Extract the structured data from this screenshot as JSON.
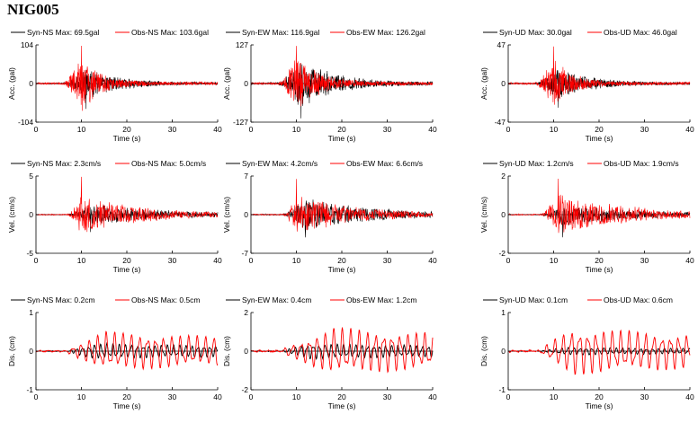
{
  "station": "NIG005",
  "colors": {
    "syn": "#000000",
    "obs": "#ff0000"
  },
  "chart_data": [
    {
      "type": "line",
      "row": 0,
      "col": 0,
      "xlabel": "Time (s)",
      "ylabel": "Acc. (gal)",
      "xlim": [
        0,
        40
      ],
      "xticks": [
        0,
        10,
        20,
        30,
        40
      ],
      "ylim": [
        -104,
        104
      ],
      "yticks": [
        -104,
        0,
        104
      ],
      "series": [
        {
          "name": "Syn-NS  Max: 69.5gal",
          "max": 69.5,
          "color": "#000000",
          "shape": "acc",
          "start": 6,
          "peak": 11,
          "decay": 7,
          "seed": 11,
          "amp": 0.45
        },
        {
          "name": "Obs-NS  Max: 103.6gal",
          "max": 103.6,
          "color": "#ff0000",
          "shape": "acc",
          "start": 6,
          "peak": 10,
          "decay": 4,
          "seed": 21,
          "amp": 0.75
        }
      ]
    },
    {
      "type": "line",
      "row": 0,
      "col": 1,
      "xlabel": "Time (s)",
      "ylabel": "Acc. (gal)",
      "xlim": [
        0,
        40
      ],
      "xticks": [
        0,
        10,
        20,
        30,
        40
      ],
      "ylim": [
        -127,
        127
      ],
      "yticks": [
        -127,
        0,
        127
      ],
      "series": [
        {
          "name": "Syn-EW  Max: 116.9gal",
          "max": 116.9,
          "color": "#000000",
          "shape": "acc",
          "start": 6,
          "peak": 11,
          "decay": 7,
          "seed": 31,
          "amp": 0.7
        },
        {
          "name": "Obs-EW  Max: 126.2gal",
          "max": 126.2,
          "color": "#ff0000",
          "shape": "acc",
          "start": 6,
          "peak": 10,
          "decay": 5,
          "seed": 41,
          "amp": 0.75
        }
      ]
    },
    {
      "type": "line",
      "row": 0,
      "col": 2,
      "xlabel": "Time (s)",
      "ylabel": "Acc. (gal)",
      "xlim": [
        0,
        40
      ],
      "xticks": [
        0,
        10,
        20,
        30,
        40
      ],
      "ylim": [
        -47,
        47
      ],
      "yticks": [
        -47,
        0,
        47
      ],
      "series": [
        {
          "name": "Syn-UD  Max: 30.0gal",
          "max": 30.0,
          "color": "#000000",
          "shape": "acc",
          "start": 6,
          "peak": 11,
          "decay": 7,
          "seed": 51,
          "amp": 0.45
        },
        {
          "name": "Obs-UD  Max: 46.0gal",
          "max": 46.0,
          "color": "#ff0000",
          "shape": "acc",
          "start": 6,
          "peak": 10,
          "decay": 4,
          "seed": 61,
          "amp": 0.7
        }
      ]
    },
    {
      "type": "line",
      "row": 1,
      "col": 0,
      "xlabel": "Time (s)",
      "ylabel": "Vel. (cm/s)",
      "xlim": [
        0,
        40
      ],
      "xticks": [
        0,
        10,
        20,
        30,
        40
      ],
      "ylim": [
        -5,
        5
      ],
      "yticks": [
        -5,
        0,
        5
      ],
      "series": [
        {
          "name": "Syn-NS  Max: 2.3cm/s",
          "max": 2.3,
          "color": "#000000",
          "shape": "vel",
          "start": 7,
          "peak": 12,
          "decay": 16,
          "seed": 12,
          "amp": 0.3
        },
        {
          "name": "Obs-NS  Max: 5.0cm/s",
          "max": 5.0,
          "color": "#ff0000",
          "shape": "vel",
          "start": 7,
          "peak": 10,
          "decay": 12,
          "seed": 22,
          "amp": 0.55
        }
      ]
    },
    {
      "type": "line",
      "row": 1,
      "col": 1,
      "xlabel": "Time (s)",
      "ylabel": "Vel. (cm/s)",
      "xlim": [
        0,
        40
      ],
      "xticks": [
        0,
        10,
        20,
        30,
        40
      ],
      "ylim": [
        -7,
        7
      ],
      "yticks": [
        -7,
        0,
        7
      ],
      "series": [
        {
          "name": "Syn-EW  Max: 4.2cm/s",
          "max": 4.2,
          "color": "#000000",
          "shape": "vel",
          "start": 7,
          "peak": 12,
          "decay": 14,
          "seed": 32,
          "amp": 0.45
        },
        {
          "name": "Obs-EW  Max: 6.6cm/s",
          "max": 6.6,
          "color": "#ff0000",
          "shape": "vel",
          "start": 7,
          "peak": 10,
          "decay": 12,
          "seed": 42,
          "amp": 0.55
        }
      ]
    },
    {
      "type": "line",
      "row": 1,
      "col": 2,
      "xlabel": "Time (s)",
      "ylabel": "Vel. (cm/s)",
      "xlim": [
        0,
        40
      ],
      "xticks": [
        0,
        10,
        20,
        30,
        40
      ],
      "ylim": [
        -2,
        2
      ],
      "yticks": [
        -2,
        0,
        2
      ],
      "series": [
        {
          "name": "Syn-UD  Max: 1.2cm/s",
          "max": 1.2,
          "color": "#000000",
          "shape": "vel",
          "start": 7,
          "peak": 12,
          "decay": 16,
          "seed": 52,
          "amp": 0.3
        },
        {
          "name": "Obs-UD  Max: 1.9cm/s",
          "max": 1.9,
          "color": "#ff0000",
          "shape": "vel",
          "start": 7,
          "peak": 11,
          "decay": 14,
          "seed": 62,
          "amp": 0.6
        }
      ]
    },
    {
      "type": "line",
      "row": 2,
      "col": 0,
      "xlabel": "Time (s)",
      "ylabel": "Dis. (cm)",
      "xlim": [
        0,
        40
      ],
      "xticks": [
        0,
        10,
        20,
        30,
        40
      ],
      "ylim": [
        -1,
        1
      ],
      "yticks": [
        -1,
        0,
        1
      ],
      "series": [
        {
          "name": "Syn-NS  Max: 0.2cm",
          "max": 0.2,
          "color": "#000000",
          "shape": "dis",
          "start": 7,
          "peak": 13,
          "decay": 30,
          "seed": 13,
          "amp": 0.55
        },
        {
          "name": "Obs-NS  Max: 0.5cm",
          "max": 0.5,
          "color": "#ff0000",
          "shape": "dis",
          "start": 7,
          "peak": 15,
          "decay": 30,
          "seed": 23,
          "amp": 0.8
        }
      ]
    },
    {
      "type": "line",
      "row": 2,
      "col": 1,
      "xlabel": "Time (s)",
      "ylabel": "Dis. (cm)",
      "xlim": [
        0,
        40
      ],
      "xticks": [
        0,
        10,
        20,
        30,
        40
      ],
      "ylim": [
        -2,
        2
      ],
      "yticks": [
        -2,
        0,
        2
      ],
      "series": [
        {
          "name": "Syn-EW  Max: 0.4cm",
          "max": 0.4,
          "color": "#000000",
          "shape": "dis",
          "start": 7,
          "peak": 13,
          "decay": 30,
          "seed": 33,
          "amp": 0.55
        },
        {
          "name": "Obs-EW  Max: 1.2cm",
          "max": 1.2,
          "color": "#ff0000",
          "shape": "dis",
          "start": 7,
          "peak": 18,
          "decay": 30,
          "seed": 43,
          "amp": 0.8
        }
      ]
    },
    {
      "type": "line",
      "row": 2,
      "col": 2,
      "xlabel": "Time (s)",
      "ylabel": "Dis. (cm)",
      "xlim": [
        0,
        40
      ],
      "xticks": [
        0,
        10,
        20,
        30,
        40
      ],
      "ylim": [
        -1,
        1
      ],
      "yticks": [
        -1,
        0,
        1
      ],
      "series": [
        {
          "name": "Syn-UD  Max: 0.1cm",
          "max": 0.1,
          "color": "#000000",
          "shape": "dis",
          "start": 7,
          "peak": 13,
          "decay": 30,
          "seed": 53,
          "amp": 0.55
        },
        {
          "name": "Obs-UD  Max: 0.6cm",
          "max": 0.6,
          "color": "#ff0000",
          "shape": "dis",
          "start": 7,
          "peak": 14,
          "decay": 30,
          "seed": 63,
          "amp": 0.85
        }
      ]
    }
  ]
}
